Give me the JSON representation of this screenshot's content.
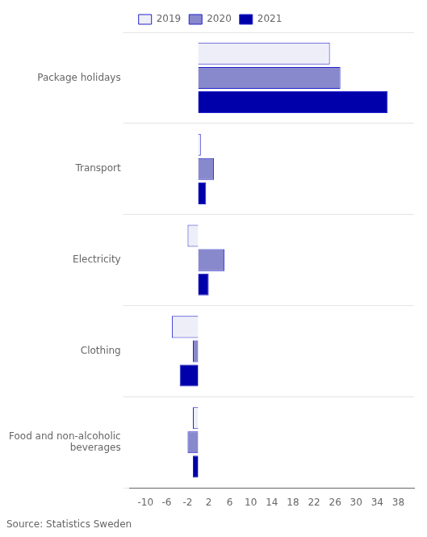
{
  "chart_data": {
    "type": "bar",
    "orientation": "horizontal",
    "categories": [
      "Package holidays",
      "Transport",
      "Electricity",
      "Clothing",
      "Food and non-alcoholic\nbeverages"
    ],
    "series": [
      {
        "name": "2019",
        "color": "#eeeef8",
        "values": [
          25.0,
          0.5,
          -2.0,
          -5.0,
          -1.0
        ]
      },
      {
        "name": "2020",
        "color": "#8888cc",
        "values": [
          27.0,
          3.0,
          5.0,
          -1.0,
          -2.0
        ]
      },
      {
        "name": "2021",
        "color": "#0000aa",
        "values": [
          36.0,
          1.5,
          2.0,
          -3.5,
          -1.0
        ]
      }
    ],
    "xlim": [
      -13,
      41
    ],
    "xticks": [
      -10,
      -6,
      -2,
      2,
      6,
      10,
      14,
      18,
      22,
      26,
      30,
      34,
      38
    ],
    "grid": true,
    "legend": "top",
    "annotations": [
      "Source: Statistics Sweden"
    ]
  }
}
